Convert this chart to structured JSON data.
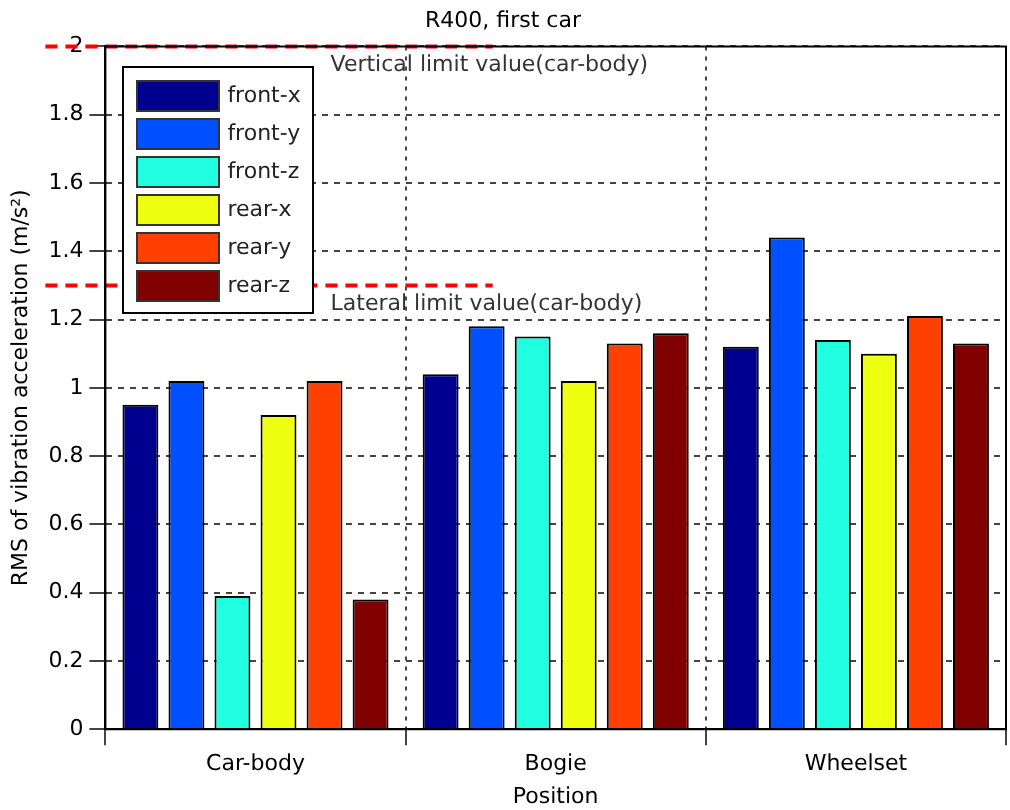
{
  "chart_data": {
    "type": "bar",
    "title": "R400, first car",
    "xlabel": "Position",
    "ylabel": "RMS of vibration acceleration (m/s²)",
    "categories": [
      "Car-body",
      "Bogie",
      "Wheelset"
    ],
    "series": [
      {
        "name": "front-x",
        "color": "#00008f",
        "values": [
          0.95,
          1.04,
          1.12
        ]
      },
      {
        "name": "front-y",
        "color": "#0050ff",
        "values": [
          1.02,
          1.18,
          1.44
        ]
      },
      {
        "name": "front-z",
        "color": "#20ffdf",
        "values": [
          0.39,
          1.15,
          1.14
        ]
      },
      {
        "name": "rear-x",
        "color": "#efff10",
        "values": [
          0.92,
          1.02,
          1.1
        ]
      },
      {
        "name": "rear-y",
        "color": "#ff4000",
        "values": [
          1.02,
          1.13,
          1.21
        ]
      },
      {
        "name": "rear-z",
        "color": "#800000",
        "values": [
          0.38,
          1.16,
          1.13
        ]
      }
    ],
    "ylim": [
      0,
      2
    ],
    "yticks": [
      0,
      0.2,
      0.4,
      0.6,
      0.8,
      1,
      1.2,
      1.4,
      1.6,
      1.8,
      2
    ],
    "grid": true,
    "legend": "top left",
    "ref_lines": [
      {
        "axis": "y",
        "value": 2,
        "label": "Vertical limit value(car-body)",
        "color": "#ff0000",
        "line_style": "dashed"
      },
      {
        "axis": "y",
        "value": 1.3,
        "label": "Lateral limit value(car-body)",
        "color": "#ff0000",
        "line_style": "dashed"
      }
    ]
  }
}
